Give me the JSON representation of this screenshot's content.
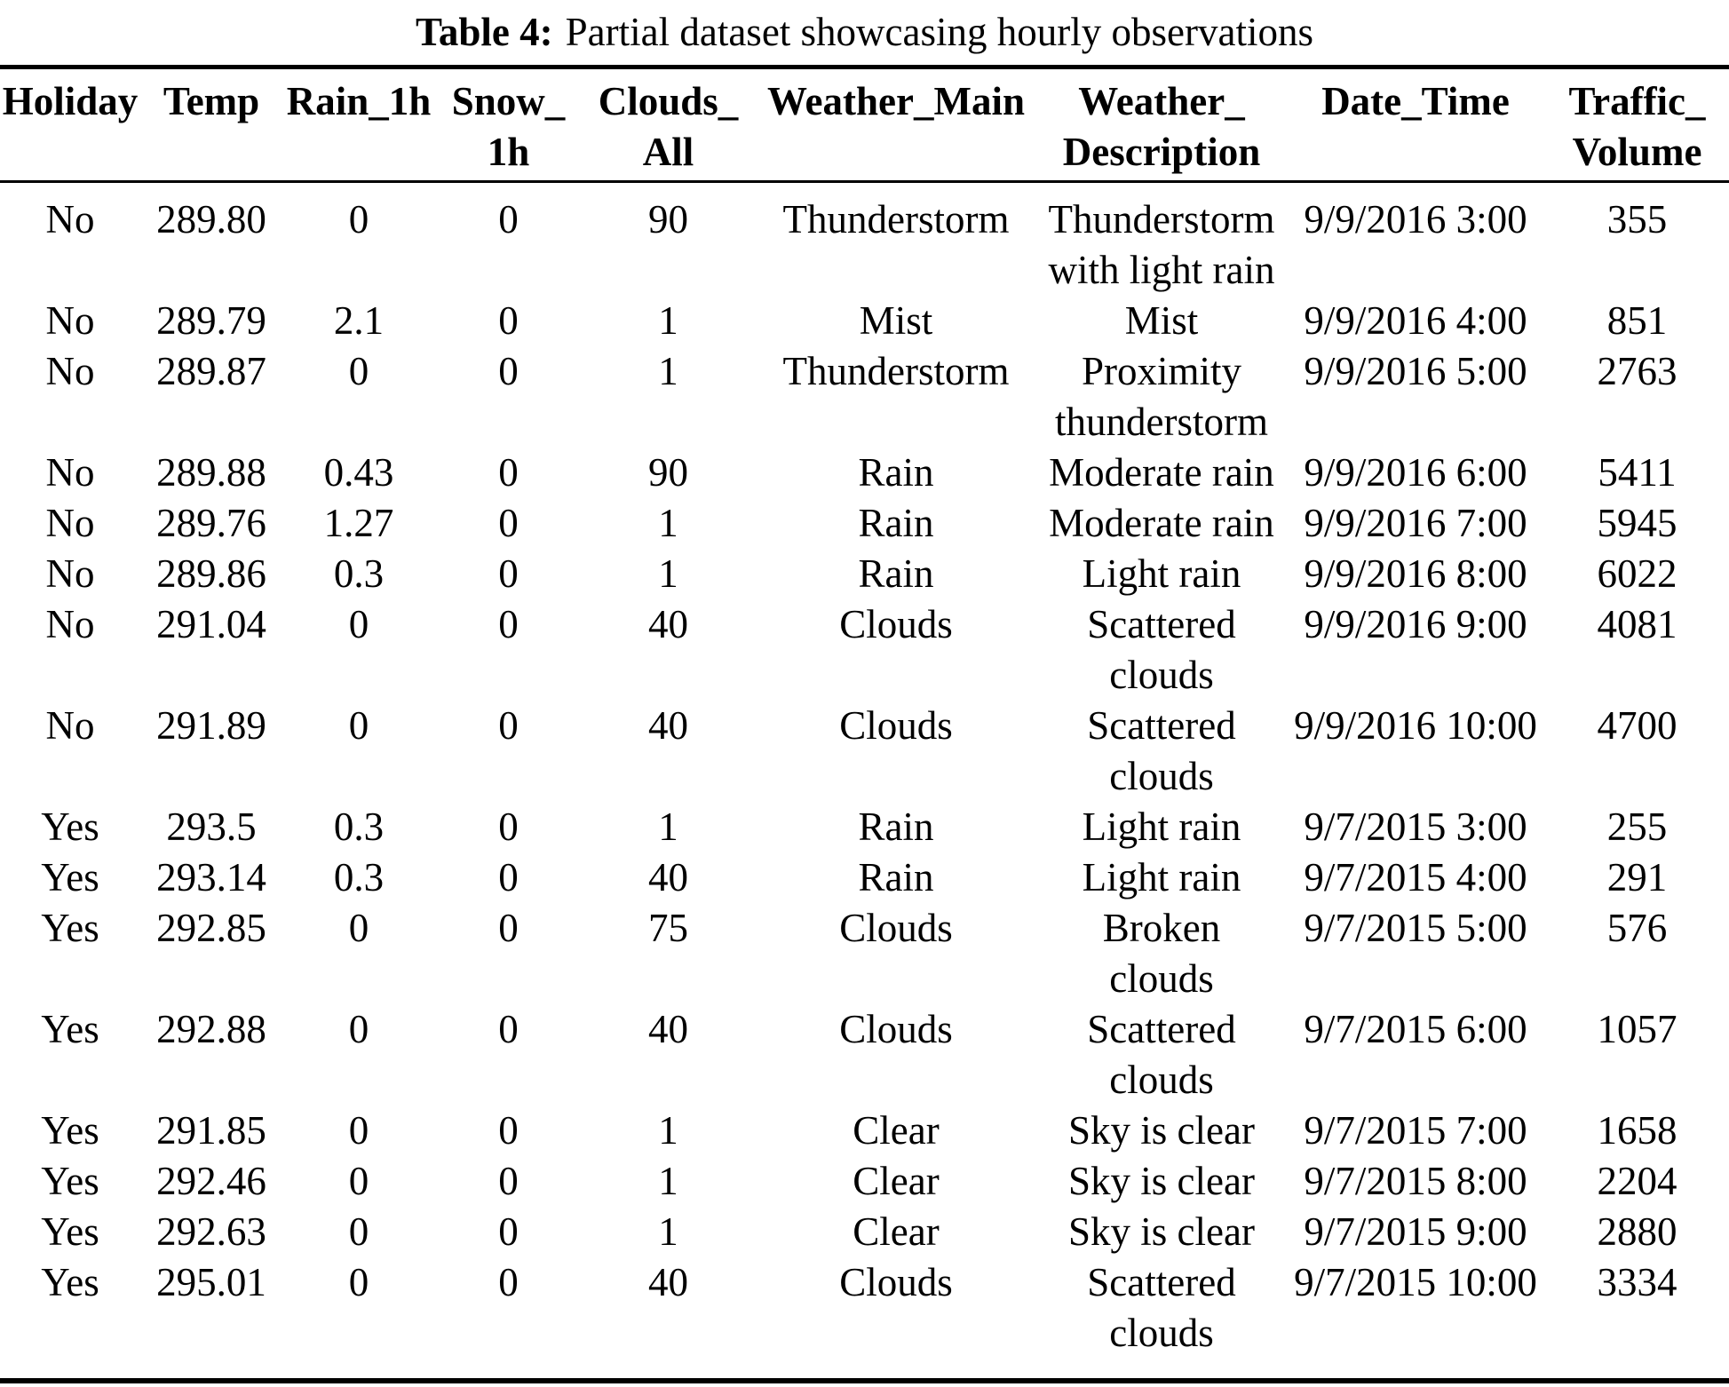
{
  "caption": {
    "label": "Table 4:",
    "text": "Partial dataset showcasing hourly observations"
  },
  "table": {
    "columns": [
      {
        "key": "holiday",
        "label": "Holiday"
      },
      {
        "key": "temp",
        "label": "Temp"
      },
      {
        "key": "rain_1h",
        "label": "Rain_1h"
      },
      {
        "key": "snow_1h",
        "label": "Snow_\n1h"
      },
      {
        "key": "clouds_all",
        "label": "Clouds_\nAll"
      },
      {
        "key": "weather_main",
        "label": "Weather_Main"
      },
      {
        "key": "weather_description",
        "label": "Weather_\nDescription"
      },
      {
        "key": "date_time",
        "label": "Date_Time"
      },
      {
        "key": "traffic_volume",
        "label": "Traffic_\nVolume"
      }
    ],
    "rows": [
      [
        "No",
        "289.80",
        "0",
        "0",
        "90",
        "Thunderstorm",
        "Thunderstorm\nwith light rain",
        "9/9/2016 3:00",
        "355"
      ],
      [
        "No",
        "289.79",
        "2.1",
        "0",
        "1",
        "Mist",
        "Mist",
        "9/9/2016 4:00",
        "851"
      ],
      [
        "No",
        "289.87",
        "0",
        "0",
        "1",
        "Thunderstorm",
        "Proximity\nthunderstorm",
        "9/9/2016 5:00",
        "2763"
      ],
      [
        "No",
        "289.88",
        "0.43",
        "0",
        "90",
        "Rain",
        "Moderate rain",
        "9/9/2016 6:00",
        "5411"
      ],
      [
        "No",
        "289.76",
        "1.27",
        "0",
        "1",
        "Rain",
        "Moderate rain",
        "9/9/2016 7:00",
        "5945"
      ],
      [
        "No",
        "289.86",
        "0.3",
        "0",
        "1",
        "Rain",
        "Light rain",
        "9/9/2016 8:00",
        "6022"
      ],
      [
        "No",
        "291.04",
        "0",
        "0",
        "40",
        "Clouds",
        "Scattered\nclouds",
        "9/9/2016 9:00",
        "4081"
      ],
      [
        "No",
        "291.89",
        "0",
        "0",
        "40",
        "Clouds",
        "Scattered\nclouds",
        "9/9/2016 10:00",
        "4700"
      ],
      [
        "Yes",
        "293.5",
        "0.3",
        "0",
        "1",
        "Rain",
        "Light rain",
        "9/7/2015 3:00",
        "255"
      ],
      [
        "Yes",
        "293.14",
        "0.3",
        "0",
        "40",
        "Rain",
        "Light rain",
        "9/7/2015 4:00",
        "291"
      ],
      [
        "Yes",
        "292.85",
        "0",
        "0",
        "75",
        "Clouds",
        "Broken\nclouds",
        "9/7/2015 5:00",
        "576"
      ],
      [
        "Yes",
        "292.88",
        "0",
        "0",
        "40",
        "Clouds",
        "Scattered\nclouds",
        "9/7/2015 6:00",
        "1057"
      ],
      [
        "Yes",
        "291.85",
        "0",
        "0",
        "1",
        "Clear",
        "Sky is clear",
        "9/7/2015 7:00",
        "1658"
      ],
      [
        "Yes",
        "292.46",
        "0",
        "0",
        "1",
        "Clear",
        "Sky is clear",
        "9/7/2015 8:00",
        "2204"
      ],
      [
        "Yes",
        "292.63",
        "0",
        "0",
        "1",
        "Clear",
        "Sky is clear",
        "9/7/2015 9:00",
        "2880"
      ],
      [
        "Yes",
        "295.01",
        "0",
        "0",
        "40",
        "Clouds",
        "Scattered\nclouds",
        "9/7/2015 10:00",
        "3334"
      ]
    ]
  }
}
